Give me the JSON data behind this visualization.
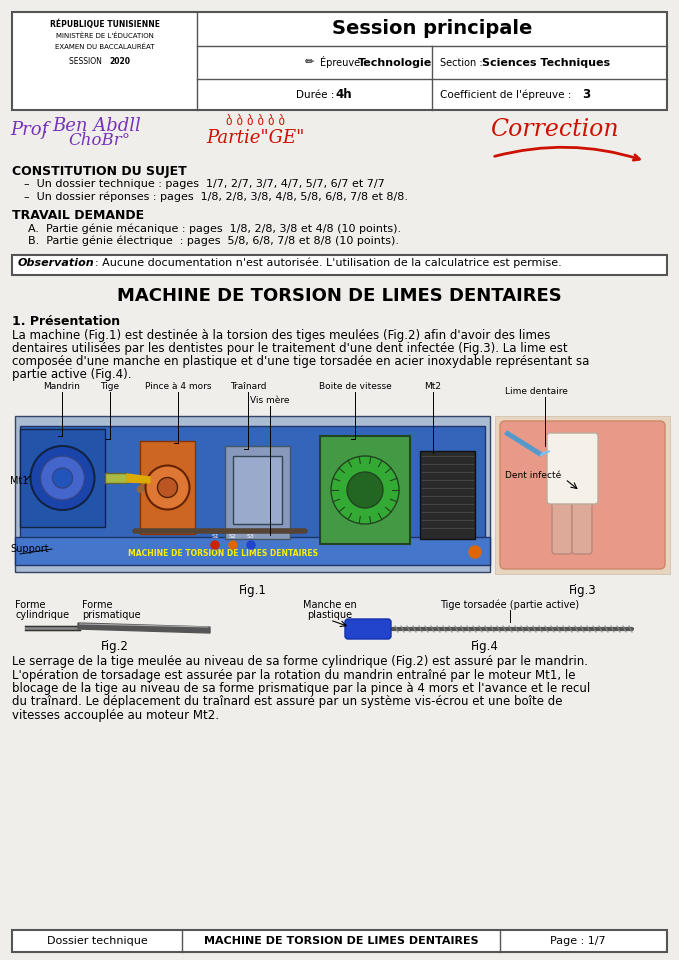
{
  "bg_color": "#f0eeea",
  "header": {
    "left_lines": [
      "RÉPUBLIQUE TUNISIENNE",
      "MINISTÈRE DE L'ÉDUCATION",
      "EXAMEN DU BACCALAURÉAT",
      "SESSION 2020"
    ],
    "session": "Session principale",
    "epreuve_label": "Épreuve : ",
    "epreuve_value": "Technologie",
    "section_label": "Section : ",
    "section_value": "Sciences Techniques",
    "duree_label": "Durée : ",
    "duree_value": "4h",
    "coeff_label": "Coefficient de l'épreuve : ",
    "coeff_value": "3"
  },
  "constitution_title": "CONSTITUTION DU SUJET",
  "constitution_items": [
    "Un dossier technique : pages  1/7, 2/7, 3/7, 4/7, 5/7, 6/7 et 7/7",
    "Un dossier réponses : pages  1/8, 2/8, 3/8, 4/8, 5/8, 6/8, 7/8 et 8/8."
  ],
  "travail_title": "TRAVAIL DEMANDE",
  "travail_items": [
    "A.  Partie génie mécanique : pages  1/8, 2/8, 3/8 et 4/8 (10 points).",
    "B.  Partie génie électrique  : pages  5/8, 6/8, 7/8 et 8/8 (10 points)."
  ],
  "observation": "Observation : Aucune documentation n'est autorisée. L'utilisation de la calculatrice est permise.",
  "main_title": "MACHINE DE TORSION DE LIMES DENTAIRES",
  "section1_title": "1. Présentation",
  "section1_text_lines": [
    "La machine (Fig.1) est destinée à la torsion des tiges meulées (Fig.2) afin d'avoir des limes",
    "dentaires utilisées par les dentistes pour le traitement d'une dent infectée (Fig.3). La lime est",
    "composée d'une manche en plastique et d'une tige torsadée en acier inoxydable représentant sa",
    "partie active (Fig.4)."
  ],
  "fig1_label": "Fig.1",
  "fig2_label": "Fig.2",
  "fig3_label": "Fig.3",
  "fig4_label": "Fig.4",
  "section2_text_lines": [
    "Le serrage de la tige meulée au niveau de sa forme cylindrique (Fig.2) est assuré par le mandrin.",
    "L'opération de torsadage est assurée par la rotation du mandrin entraîné par le moteur Mt1, le",
    "blocage de la tige au niveau de sa forme prismatique par la pince à 4 mors et l'avance et le recul",
    "du traînard. Le déplacement du traînard est assuré par un système vis-écrou et une boîte de",
    "vitesses accouplée au moteur Mt2."
  ],
  "footer_left": "Dossier technique",
  "footer_center": "MACHINE DE TORSION DE LIMES DENTAIRES",
  "footer_right": "Page : 1/7"
}
